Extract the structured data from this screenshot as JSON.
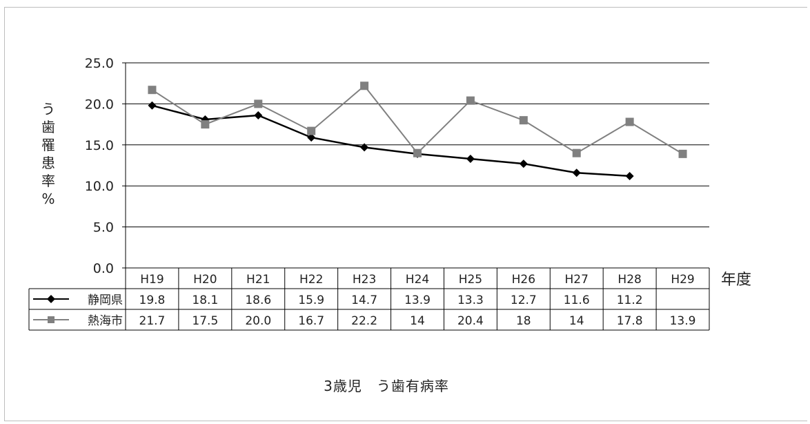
{
  "chart_data": {
    "type": "line",
    "title": "3歳児　う歯有病率",
    "ylabel": "う歯罹患率%",
    "xlabel": "年度",
    "categories": [
      "H19",
      "H20",
      "H21",
      "H22",
      "H23",
      "H24",
      "H25",
      "H26",
      "H27",
      "H28",
      "H29"
    ],
    "y_ticks": [
      "0.0",
      "5.0",
      "10.0",
      "15.0",
      "20.0",
      "25.0"
    ],
    "ylim": [
      0,
      25
    ],
    "grid": true,
    "legend": "data-table",
    "series": [
      {
        "name": "静岡県",
        "color": "#000000",
        "marker": "diamond",
        "values": [
          19.8,
          18.1,
          18.6,
          15.9,
          14.7,
          13.9,
          13.3,
          12.7,
          11.6,
          11.2,
          null
        ],
        "labels": [
          "19.8",
          "18.1",
          "18.6",
          "15.9",
          "14.7",
          "13.9",
          "13.3",
          "12.7",
          "11.6",
          "11.2",
          ""
        ]
      },
      {
        "name": "熱海市",
        "color": "#808080",
        "marker": "square",
        "values": [
          21.7,
          17.5,
          20.0,
          16.7,
          22.2,
          14,
          20.4,
          18,
          14,
          17.8,
          13.9
        ],
        "labels": [
          "21.7",
          "17.5",
          "20.0",
          "16.7",
          "22.2",
          "14",
          "20.4",
          "18",
          "14",
          "17.8",
          "13.9"
        ]
      }
    ]
  }
}
